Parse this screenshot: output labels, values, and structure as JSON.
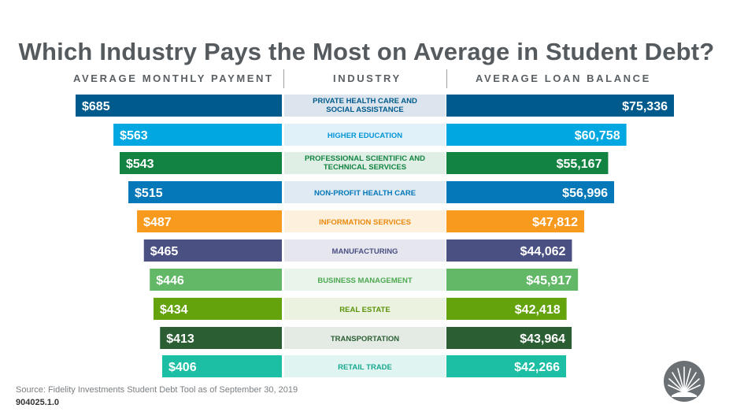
{
  "title": "Which Industry Pays the Most on Average in Student Debt?",
  "headers": {
    "left": "AVERAGE MONTHLY PAYMENT",
    "middle": "INDUSTRY",
    "right": "AVERAGE LOAN BALANCE"
  },
  "footer": {
    "source": "Source: Fidelity Investments Student Debt Tool as of September 30, 2019",
    "code": "904025.1.0"
  },
  "chart_data": {
    "type": "bar",
    "categories": [
      [
        "PRIVATE HEALTH CARE AND",
        "SOCIAL ASSISTANCE"
      ],
      [
        "HIGHER EDUCATION"
      ],
      [
        "PROFESSIONAL SCIENTIFIC AND",
        "TECHNICAL SERVICES"
      ],
      [
        "NON-PROFIT HEALTH CARE"
      ],
      [
        "INFORMATION SERVICES"
      ],
      [
        "MANUFACTURING"
      ],
      [
        "BUSINESS MANAGEMENT"
      ],
      [
        "REAL ESTATE"
      ],
      [
        "TRANSPORTATION"
      ],
      [
        "RETAIL TRADE"
      ]
    ],
    "series": [
      {
        "name": "AVERAGE MONTHLY PAYMENT",
        "values": [
          685,
          563,
          543,
          515,
          487,
          465,
          446,
          434,
          413,
          406
        ],
        "labels": [
          "$685",
          "$563",
          "$543",
          "$515",
          "$487",
          "$465",
          "$446",
          "$434",
          "$413",
          "$406"
        ]
      },
      {
        "name": "AVERAGE LOAN BALANCE",
        "values": [
          75336,
          60758,
          55167,
          56996,
          47812,
          44062,
          45917,
          42418,
          43964,
          42266
        ],
        "labels": [
          "$75,336",
          "$60,758",
          "$55,167",
          "$56,996",
          "$47,812",
          "$44,062",
          "$45,917",
          "$42,418",
          "$43,964",
          "$42,266"
        ]
      }
    ],
    "colors": [
      "#005a8c",
      "#00a7e0",
      "#128341",
      "#0478b8",
      "#f79a1e",
      "#4b5083",
      "#62b866",
      "#65a30c",
      "#2b5e33",
      "#1cbfa3"
    ],
    "label_colors": [
      "#005a8c",
      "#0095d6",
      "#128341",
      "#0478b8",
      "#e8890c",
      "#4b5083",
      "#4ea852",
      "#5b930a",
      "#2b5e33",
      "#17a88f"
    ],
    "middle_fills": [
      "#dce5ed",
      "#e1f1fa",
      "#e0efe5",
      "#dfeaf3",
      "#fdf0dc",
      "#e6e7ee",
      "#e9f4ea",
      "#ebf2e0",
      "#e4ebe5",
      "#e0f5f1"
    ]
  }
}
